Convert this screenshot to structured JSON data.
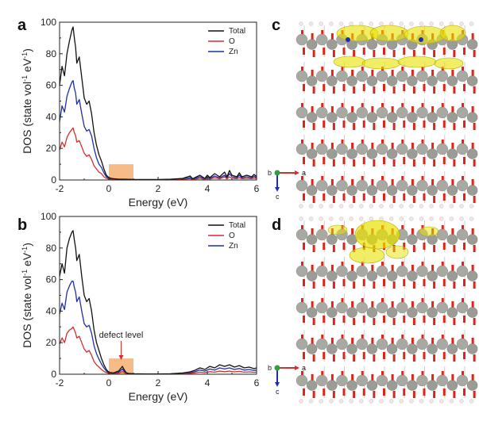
{
  "panels": {
    "a": "a",
    "b": "b",
    "c": "c",
    "d": "d"
  },
  "colors": {
    "total": "#111111",
    "o": "#d32f2f",
    "zn": "#1f2fa8",
    "highlight": "#f4a460",
    "zinc_atom": "#a9a9a4",
    "oxygen_atom": "#d9261c",
    "hydrogen_atom": "#f0e6e6",
    "density": "#e8e200"
  },
  "chart_data": [
    {
      "type": "line",
      "panel": "a",
      "xlabel": "Energy (eV)",
      "ylabel_main": "DOS (state vol",
      "ylabel_sup1": "-1",
      "ylabel_mid": " eV",
      "ylabel_sup2": "-1",
      "ylabel_end": ")",
      "xlim": [
        -2,
        6
      ],
      "ylim": [
        0,
        100
      ],
      "xticks": [
        -2,
        0,
        2,
        4,
        6
      ],
      "yticks": [
        0,
        20,
        40,
        60,
        80,
        100
      ],
      "highlight_x": [
        0,
        1
      ],
      "highlight_y": [
        0,
        10
      ],
      "legend_position": "top-right",
      "x": [
        -2.0,
        -1.9,
        -1.8,
        -1.7,
        -1.6,
        -1.5,
        -1.45,
        -1.4,
        -1.35,
        -1.3,
        -1.2,
        -1.1,
        -1.0,
        -0.9,
        -0.8,
        -0.7,
        -0.6,
        -0.5,
        -0.4,
        -0.3,
        -0.2,
        -0.1,
        0.0,
        0.1,
        0.2,
        0.4,
        0.6,
        0.8,
        1.0,
        1.5,
        2.0,
        2.5,
        3.0,
        3.3,
        3.4,
        3.5,
        3.7,
        3.9,
        4.0,
        4.1,
        4.3,
        4.5,
        4.7,
        4.8,
        4.9,
        5.0,
        5.2,
        5.3,
        5.4,
        5.6,
        5.8,
        5.9,
        6.0
      ],
      "series": [
        {
          "name": "Total",
          "values": [
            60,
            72,
            66,
            80,
            88,
            95,
            97,
            90,
            84,
            74,
            78,
            65,
            52,
            48,
            50,
            42,
            30,
            22,
            16,
            12,
            7,
            3,
            1.5,
            1,
            0.8,
            0.5,
            0.5,
            0.4,
            0.3,
            0.3,
            0.3,
            0.5,
            1,
            2.5,
            0.8,
            1.5,
            3,
            1,
            3,
            1.5,
            4,
            2,
            5,
            2,
            6,
            3,
            2,
            4.5,
            2,
            3,
            2,
            3.5,
            2
          ]
        },
        {
          "name": "O",
          "values": [
            19,
            24,
            21,
            27,
            30,
            32,
            33,
            30,
            28,
            24,
            25,
            21,
            17,
            15,
            16,
            13,
            9,
            7,
            5,
            4,
            2,
            1,
            0.6,
            0.4,
            0.3,
            0.2,
            0.2,
            0.2,
            0.1,
            0.1,
            0.1,
            0.2,
            0.4,
            0.8,
            0.3,
            0.5,
            1,
            0.4,
            1,
            0.5,
            1.5,
            0.7,
            2,
            0.7,
            2,
            1,
            0.8,
            1.5,
            0.8,
            1,
            0.8,
            1.2,
            0.8
          ]
        },
        {
          "name": "Zn",
          "values": [
            37,
            47,
            43,
            53,
            58,
            62,
            63,
            58,
            55,
            48,
            51,
            42,
            34,
            31,
            32,
            28,
            20,
            14,
            10,
            8,
            4.5,
            2,
            1,
            0.7,
            0.5,
            0.3,
            0.3,
            0.3,
            0.2,
            0.2,
            0.2,
            0.3,
            0.6,
            1.5,
            0.5,
            1,
            2,
            0.7,
            2,
            1,
            2.5,
            1.3,
            3,
            1.3,
            4,
            2,
            1.3,
            3,
            1.3,
            2,
            1.3,
            2.3,
            1.3
          ]
        }
      ]
    },
    {
      "type": "line",
      "panel": "b",
      "xlabel": "Energy (eV)",
      "ylabel_main": "DOS (state vol",
      "ylabel_sup1": "-1",
      "ylabel_mid": " eV",
      "ylabel_sup2": "-1",
      "ylabel_end": ")",
      "xlim": [
        -2,
        6
      ],
      "ylim": [
        0,
        100
      ],
      "xticks": [
        -2,
        0,
        2,
        4,
        6
      ],
      "yticks": [
        0,
        20,
        40,
        60,
        80,
        100
      ],
      "highlight_x": [
        0,
        1
      ],
      "highlight_y": [
        0,
        10
      ],
      "legend_position": "top-right",
      "annotation": "defect level",
      "annotation_x": 0.5,
      "x": [
        -2.0,
        -1.9,
        -1.8,
        -1.7,
        -1.6,
        -1.5,
        -1.45,
        -1.4,
        -1.35,
        -1.3,
        -1.2,
        -1.1,
        -1.0,
        -0.9,
        -0.8,
        -0.7,
        -0.6,
        -0.5,
        -0.4,
        -0.3,
        -0.2,
        -0.1,
        0.0,
        0.1,
        0.2,
        0.3,
        0.4,
        0.5,
        0.55,
        0.6,
        0.7,
        0.8,
        1.0,
        1.5,
        2.0,
        2.5,
        3.0,
        3.3,
        3.5,
        3.7,
        3.9,
        4.1,
        4.3,
        4.5,
        4.7,
        4.9,
        5.1,
        5.3,
        5.5,
        5.7,
        5.9,
        6.0
      ],
      "series": [
        {
          "name": "Total",
          "values": [
            62,
            70,
            64,
            80,
            86,
            90,
            91,
            85,
            80,
            72,
            76,
            62,
            50,
            46,
            48,
            40,
            28,
            20,
            15,
            10,
            6,
            3,
            1.2,
            1,
            0.8,
            1.5,
            2,
            4,
            5,
            3.5,
            1,
            0.5,
            0.3,
            0.2,
            0.2,
            0.3,
            0.8,
            1.5,
            2.5,
            4,
            3,
            5,
            4,
            6,
            5,
            6,
            4.5,
            5.5,
            4,
            4.5,
            3.5,
            4
          ]
        },
        {
          "name": "O",
          "values": [
            19,
            23,
            20,
            26,
            28,
            29,
            30,
            28,
            26,
            23,
            24,
            20,
            16,
            14,
            15,
            12,
            8,
            6,
            4.5,
            3,
            1.8,
            1,
            0.5,
            0.4,
            0.3,
            0.5,
            0.7,
            1.3,
            1.7,
            1.2,
            0.4,
            0.2,
            0.1,
            0.1,
            0.1,
            0.1,
            0.3,
            0.5,
            0.8,
            1.3,
            1,
            1.6,
            1.3,
            2,
            1.6,
            2,
            1.5,
            1.8,
            1.3,
            1.5,
            1.2,
            1.3
          ]
        },
        {
          "name": "Zn",
          "values": [
            38,
            45,
            41,
            52,
            56,
            59,
            59,
            55,
            52,
            46,
            49,
            40,
            32,
            30,
            31,
            26,
            18,
            13,
            9.5,
            6.5,
            4,
            2,
            0.8,
            0.6,
            0.5,
            1,
            1.3,
            2.6,
            3.3,
            2.3,
            0.6,
            0.3,
            0.2,
            0.1,
            0.1,
            0.2,
            0.5,
            1,
            1.6,
            2.6,
            2,
            3.3,
            2.6,
            4,
            3.3,
            4,
            3,
            3.6,
            2.6,
            3,
            2.3,
            2.6
          ]
        }
      ]
    }
  ],
  "structures": {
    "c": {
      "axis_b": "b",
      "axis_a": "a",
      "axis_c": "c",
      "density": "top-layer-spread"
    },
    "d": {
      "axis_b": "b",
      "axis_a": "a",
      "axis_c": "c",
      "density": "localized-defect"
    }
  }
}
